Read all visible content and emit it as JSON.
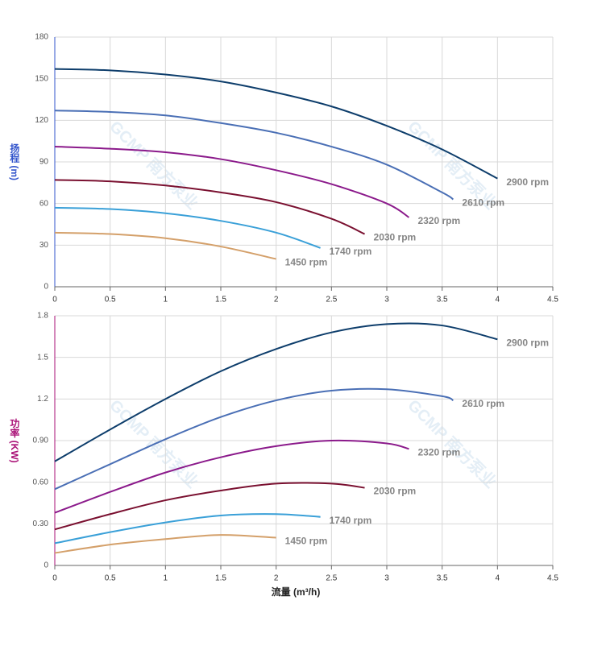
{
  "chart_data": [
    {
      "type": "line",
      "ylabel": "扬程 (m)",
      "watermark": "GCMP 南方泵业",
      "xlim": [
        0,
        4.5
      ],
      "xticks": [
        0,
        0.5,
        1,
        1.5,
        2,
        2.5,
        3,
        3.5,
        4,
        4.5
      ],
      "ylim": [
        0,
        180
      ],
      "yticks": [
        0,
        30,
        60,
        90,
        120,
        150,
        180
      ],
      "grid": true,
      "series": [
        {
          "name": "2900 rpm",
          "color": "#0d3d6b",
          "x": [
            0,
            0.5,
            1,
            1.5,
            2,
            2.5,
            3,
            3.5,
            4
          ],
          "values": [
            157,
            156,
            153,
            148,
            140,
            130,
            116,
            99,
            78
          ]
        },
        {
          "name": "2610 rpm",
          "color": "#4a6fb5",
          "x": [
            0,
            0.5,
            1,
            1.5,
            2,
            2.5,
            3,
            3.5,
            3.6
          ],
          "values": [
            127,
            126,
            123.5,
            118,
            111,
            101,
            88,
            68,
            63
          ]
        },
        {
          "name": "2320 rpm",
          "color": "#8b1a8b",
          "x": [
            0,
            0.5,
            1,
            1.5,
            2,
            2.5,
            3,
            3.2
          ],
          "values": [
            101,
            99.5,
            97,
            92,
            84,
            74,
            60,
            50
          ]
        },
        {
          "name": "2030 rpm",
          "color": "#7a1030",
          "x": [
            0,
            0.5,
            1,
            1.5,
            2,
            2.5,
            2.8
          ],
          "values": [
            77,
            76,
            73,
            68,
            61,
            49,
            38
          ]
        },
        {
          "name": "1740 rpm",
          "color": "#3aa0d8",
          "x": [
            0,
            0.5,
            1,
            1.5,
            2,
            2.4
          ],
          "values": [
            57,
            56,
            53,
            47.5,
            39,
            28
          ]
        },
        {
          "name": "1450 rpm",
          "color": "#d4a06a",
          "x": [
            0,
            0.5,
            1,
            1.5,
            2
          ],
          "values": [
            39,
            38,
            35,
            29,
            20
          ]
        }
      ]
    },
    {
      "type": "line",
      "ylabel": "功率 (KW)",
      "xlabel": "流量 (m³/h)",
      "watermark": "GCMP 南方泵业",
      "xlim": [
        0,
        4.5
      ],
      "xticks": [
        0,
        0.5,
        1,
        1.5,
        2,
        2.5,
        3,
        3.5,
        4,
        4.5
      ],
      "ylim": [
        0,
        1.8
      ],
      "yticks": [
        0,
        {
          "value": 0.3,
          "label": "0.30"
        },
        {
          "value": 0.6,
          "label": "0.60"
        },
        {
          "value": 0.9,
          "label": "0.90"
        },
        1.2,
        1.5,
        1.8
      ],
      "grid": true,
      "series": [
        {
          "name": "2900 rpm",
          "color": "#0d3d6b",
          "x": [
            0,
            0.5,
            1,
            1.5,
            2,
            2.5,
            3,
            3.5,
            4
          ],
          "values": [
            0.75,
            0.98,
            1.2,
            1.4,
            1.56,
            1.68,
            1.74,
            1.73,
            1.63
          ]
        },
        {
          "name": "2610 rpm",
          "color": "#4a6fb5",
          "x": [
            0,
            0.5,
            1,
            1.5,
            2,
            2.5,
            3,
            3.5,
            3.6
          ],
          "values": [
            0.55,
            0.73,
            0.91,
            1.07,
            1.19,
            1.26,
            1.27,
            1.22,
            1.19
          ]
        },
        {
          "name": "2320 rpm",
          "color": "#8b1a8b",
          "x": [
            0,
            0.5,
            1,
            1.5,
            2,
            2.5,
            3,
            3.2
          ],
          "values": [
            0.38,
            0.53,
            0.67,
            0.78,
            0.86,
            0.9,
            0.88,
            0.84
          ]
        },
        {
          "name": "2030 rpm",
          "color": "#7a1030",
          "x": [
            0,
            0.5,
            1,
            1.5,
            2,
            2.5,
            2.8
          ],
          "values": [
            0.26,
            0.37,
            0.47,
            0.54,
            0.59,
            0.59,
            0.56
          ]
        },
        {
          "name": "1740 rpm",
          "color": "#3aa0d8",
          "x": [
            0,
            0.5,
            1,
            1.5,
            2,
            2.4
          ],
          "values": [
            0.16,
            0.24,
            0.31,
            0.36,
            0.37,
            0.35
          ]
        },
        {
          "name": "1450 rpm",
          "color": "#d4a06a",
          "x": [
            0,
            0.5,
            1,
            1.5,
            2
          ],
          "values": [
            0.09,
            0.15,
            0.19,
            0.22,
            0.2
          ]
        }
      ]
    }
  ]
}
